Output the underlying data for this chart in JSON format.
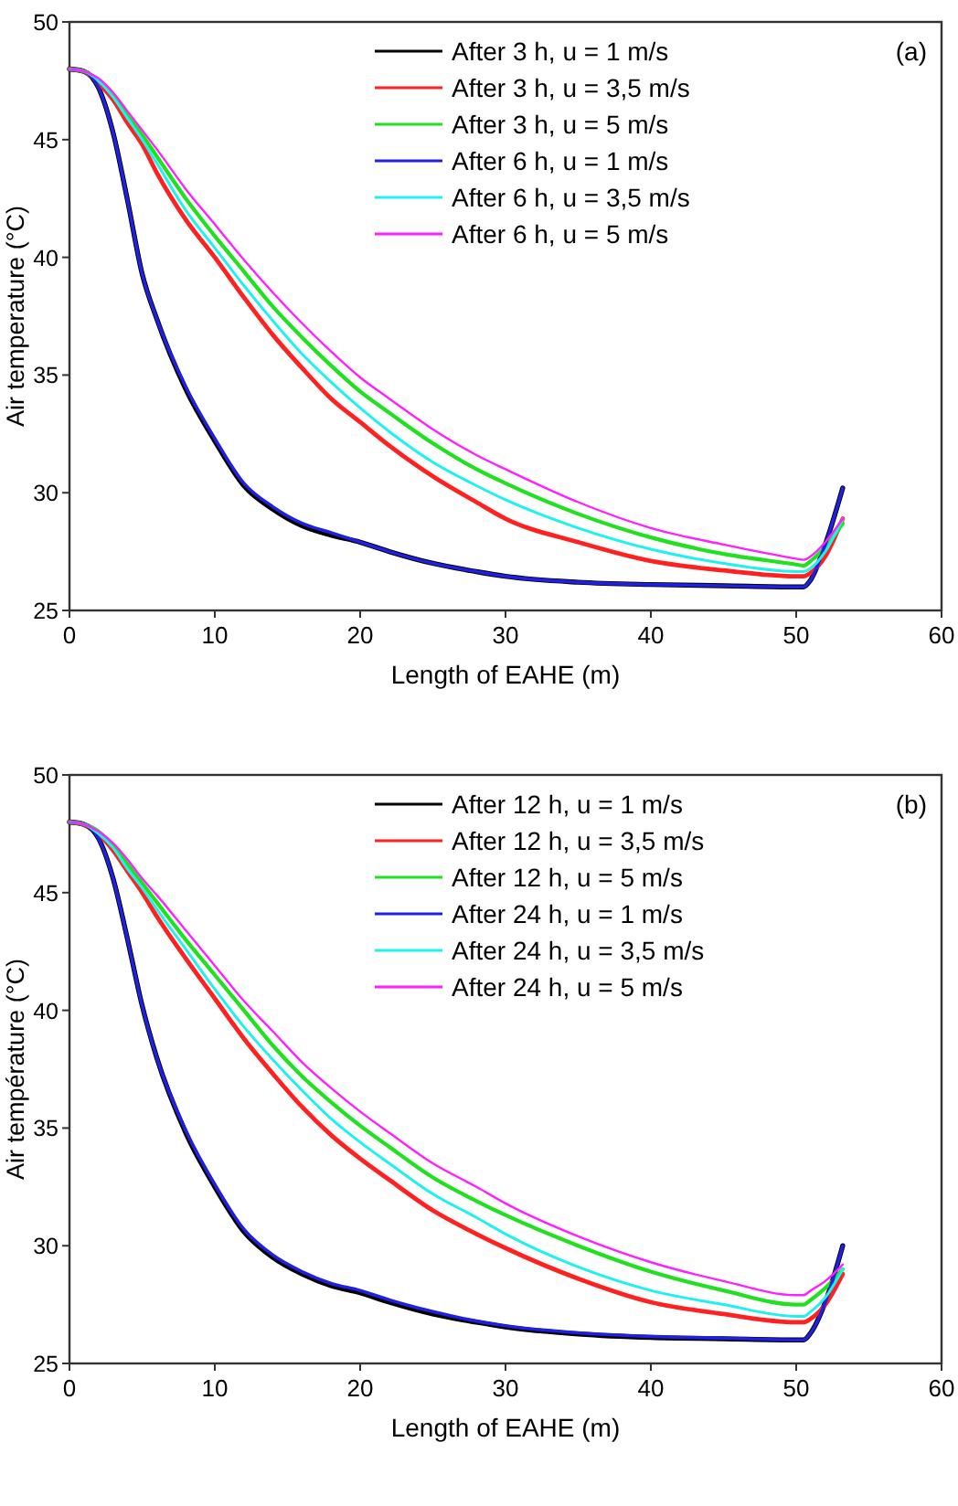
{
  "chart_data": [
    {
      "type": "line",
      "x": [
        0,
        1,
        2,
        3,
        4,
        5,
        6,
        8,
        10,
        12,
        14,
        16,
        18,
        20,
        22,
        25,
        28,
        30,
        35,
        40,
        45,
        50,
        50.5,
        51,
        52,
        53.2
      ],
      "xlabel": "Length of EAHE (m)",
      "ylabel": "Air temperature (°C)",
      "xlim": [
        0,
        60
      ],
      "xticks": [
        0,
        10,
        20,
        30,
        40,
        50,
        60
      ],
      "ylim": [
        25,
        50
      ],
      "yticks": [
        25,
        30,
        35,
        40,
        45,
        50
      ],
      "legend": "top right",
      "grid": false,
      "annotations": [
        "(a)"
      ],
      "series": [
        {
          "name": "After 3 h, u = 1 m/s",
          "color": "#000000",
          "values": [
            48,
            47.9,
            47.2,
            45.3,
            42.4,
            39.3,
            37.4,
            34.4,
            32.2,
            30.3,
            29.3,
            28.6,
            28.2,
            27.9,
            27.5,
            27.0,
            26.65,
            26.45,
            26.2,
            26.1,
            26.05,
            26.0,
            26.0,
            26.3,
            27.8,
            30.2
          ]
        },
        {
          "name": "After 3 h, u = 3,5 m/s",
          "color": "#ff2020",
          "values": [
            48,
            47.9,
            47.4,
            46.7,
            45.7,
            44.8,
            43.6,
            41.6,
            40.0,
            38.3,
            36.7,
            35.3,
            34.0,
            33.0,
            32.0,
            30.7,
            29.6,
            28.9,
            27.9,
            27.1,
            26.7,
            26.45,
            26.45,
            26.6,
            27.3,
            28.9
          ]
        },
        {
          "name": "After 3 h, u = 5 m/s",
          "color": "#20e020",
          "values": [
            48,
            47.9,
            47.5,
            46.9,
            46.0,
            45.2,
            44.3,
            42.5,
            40.9,
            39.4,
            37.9,
            36.6,
            35.4,
            34.3,
            33.4,
            32.1,
            31.0,
            30.4,
            29.1,
            28.1,
            27.4,
            26.95,
            26.9,
            27.1,
            27.7,
            28.7
          ]
        },
        {
          "name": "After 6 h, u = 1 m/s",
          "color": "#2020e0",
          "values": [
            48,
            47.9,
            47.2,
            45.3,
            42.4,
            39.3,
            37.4,
            34.5,
            32.3,
            30.4,
            29.4,
            28.7,
            28.3,
            27.9,
            27.5,
            27.0,
            26.65,
            26.45,
            26.2,
            26.1,
            26.05,
            26.0,
            26.0,
            26.3,
            27.8,
            30.2
          ]
        },
        {
          "name": "After 6 h, u = 3,5 m/s",
          "color": "#20f0f0",
          "values": [
            48,
            47.9,
            47.5,
            46.8,
            45.9,
            45.0,
            44.0,
            42.0,
            40.4,
            38.8,
            37.3,
            35.9,
            34.7,
            33.6,
            32.6,
            31.3,
            30.3,
            29.7,
            28.5,
            27.6,
            27.0,
            26.65,
            26.65,
            26.8,
            27.5,
            28.9
          ]
        },
        {
          "name": "After 6 h, u = 5 m/s",
          "color": "#ff20ff",
          "values": [
            48,
            47.9,
            47.6,
            47.0,
            46.2,
            45.4,
            44.6,
            42.9,
            41.4,
            39.9,
            38.5,
            37.2,
            36.0,
            34.9,
            34.0,
            32.7,
            31.6,
            31.0,
            29.6,
            28.5,
            27.8,
            27.2,
            27.15,
            27.3,
            27.9,
            28.9
          ]
        }
      ]
    },
    {
      "type": "line",
      "x": [
        0,
        1,
        2,
        3,
        4,
        5,
        6,
        8,
        10,
        12,
        14,
        16,
        18,
        20,
        22,
        25,
        28,
        30,
        35,
        40,
        45,
        50,
        50.5,
        51,
        52,
        53.2
      ],
      "xlabel": "Length of EAHE (m)",
      "ylabel": "Air température (°C)",
      "xlim": [
        0,
        60
      ],
      "xticks": [
        0,
        10,
        20,
        30,
        40,
        50,
        60
      ],
      "ylim": [
        25,
        50
      ],
      "yticks": [
        25,
        30,
        35,
        40,
        45,
        50
      ],
      "legend": "top right",
      "grid": false,
      "annotations": [
        "(b)"
      ],
      "series": [
        {
          "name": "After 12 h, u = 1 m/s",
          "color": "#000000",
          "values": [
            48,
            47.9,
            47.3,
            45.6,
            43.0,
            40.2,
            38.0,
            34.8,
            32.5,
            30.6,
            29.5,
            28.8,
            28.3,
            28.0,
            27.6,
            27.1,
            26.75,
            26.55,
            26.25,
            26.1,
            26.05,
            26.0,
            26.0,
            26.3,
            27.6,
            30.0
          ]
        },
        {
          "name": "After 12 h, u = 3,5 m/s",
          "color": "#ff2020",
          "values": [
            48,
            47.9,
            47.5,
            46.8,
            45.9,
            45.0,
            44.0,
            42.2,
            40.5,
            38.8,
            37.3,
            35.9,
            34.7,
            33.7,
            32.8,
            31.5,
            30.5,
            29.9,
            28.6,
            27.6,
            27.1,
            26.75,
            26.75,
            26.9,
            27.5,
            28.8
          ]
        },
        {
          "name": "After 12 h, u = 5 m/s",
          "color": "#20e020",
          "values": [
            48,
            47.9,
            47.6,
            47.0,
            46.2,
            45.4,
            44.6,
            43.0,
            41.5,
            40.0,
            38.5,
            37.2,
            36.1,
            35.1,
            34.2,
            32.9,
            31.9,
            31.3,
            30.0,
            28.9,
            28.1,
            27.5,
            27.5,
            27.7,
            28.2,
            29.0
          ]
        },
        {
          "name": "After 24 h, u = 1 m/s",
          "color": "#2020e0",
          "values": [
            48,
            47.9,
            47.3,
            45.6,
            43.0,
            40.2,
            38.0,
            34.9,
            32.6,
            30.7,
            29.6,
            28.9,
            28.4,
            28.1,
            27.7,
            27.2,
            26.8,
            26.6,
            26.3,
            26.15,
            26.08,
            26.0,
            26.0,
            26.3,
            27.6,
            30.0
          ]
        },
        {
          "name": "After 24 h, u = 3,5 m/s",
          "color": "#20f0f0",
          "values": [
            48,
            47.9,
            47.5,
            46.9,
            46.0,
            45.2,
            44.3,
            42.6,
            40.9,
            39.3,
            37.9,
            36.6,
            35.4,
            34.4,
            33.5,
            32.2,
            31.2,
            30.5,
            29.1,
            28.1,
            27.5,
            27.0,
            27.0,
            27.2,
            27.8,
            29.0
          ]
        },
        {
          "name": "After 24 h, u = 5 m/s",
          "color": "#ff20ff",
          "values": [
            48,
            47.9,
            47.6,
            47.1,
            46.4,
            45.6,
            44.9,
            43.4,
            41.9,
            40.4,
            39.1,
            37.8,
            36.7,
            35.7,
            34.8,
            33.5,
            32.5,
            31.8,
            30.4,
            29.3,
            28.5,
            27.9,
            27.9,
            28.1,
            28.5,
            29.2
          ]
        }
      ]
    }
  ]
}
